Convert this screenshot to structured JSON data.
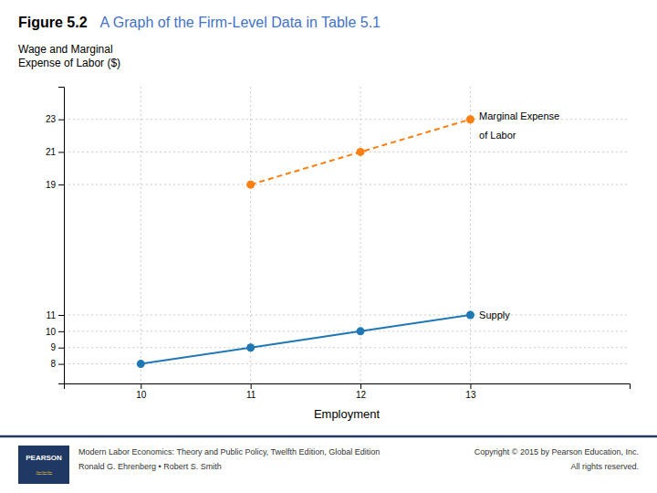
{
  "chart_data": {
    "type": "line",
    "title": "Figure 5.2",
    "subtitle": "A Graph of the Firm-Level Data in Table 5.1",
    "ylabel": [
      "Wage and Marginal",
      "Expense of Labor ($)"
    ],
    "xlabel": "Employment",
    "series": [
      {
        "x": [
          10,
          11,
          12,
          13
        ],
        "values": [
          8,
          9,
          10,
          11
        ],
        "line_style": "solid",
        "marker": "circle"
      },
      {
        "x": [
          11,
          12,
          13
        ],
        "values": [
          19,
          21,
          23
        ],
        "line_style": "dashed",
        "marker": "circle"
      }
    ],
    "annotations": [
      {
        "text": "Marginal Expense",
        "x": 13.08,
        "y": 23.2
      },
      {
        "text": "of Labor",
        "x": 13.08,
        "y": 22.0
      },
      {
        "text": "Supply",
        "x": 13.08,
        "y": 11.0
      }
    ],
    "xlim": [
      9.3,
      14.45
    ],
    "ylim": [
      6.8,
      25.0
    ],
    "xticks": [
      10,
      11,
      12,
      13
    ],
    "yticks": [
      8,
      9,
      10,
      11,
      19,
      21,
      23
    ],
    "grid": true,
    "logo": [
      "PEARSON",
      "≈≈≈"
    ],
    "footer": [
      "Modern Labor Economics: Theory and Public Policy, Twelfth Edition, Global Edition",
      "Ronald G. Ehrenberg • Robert S. Smith",
      "Copyright © 2015 by Pearson Education, Inc.",
      "All rights reserved."
    ]
  }
}
